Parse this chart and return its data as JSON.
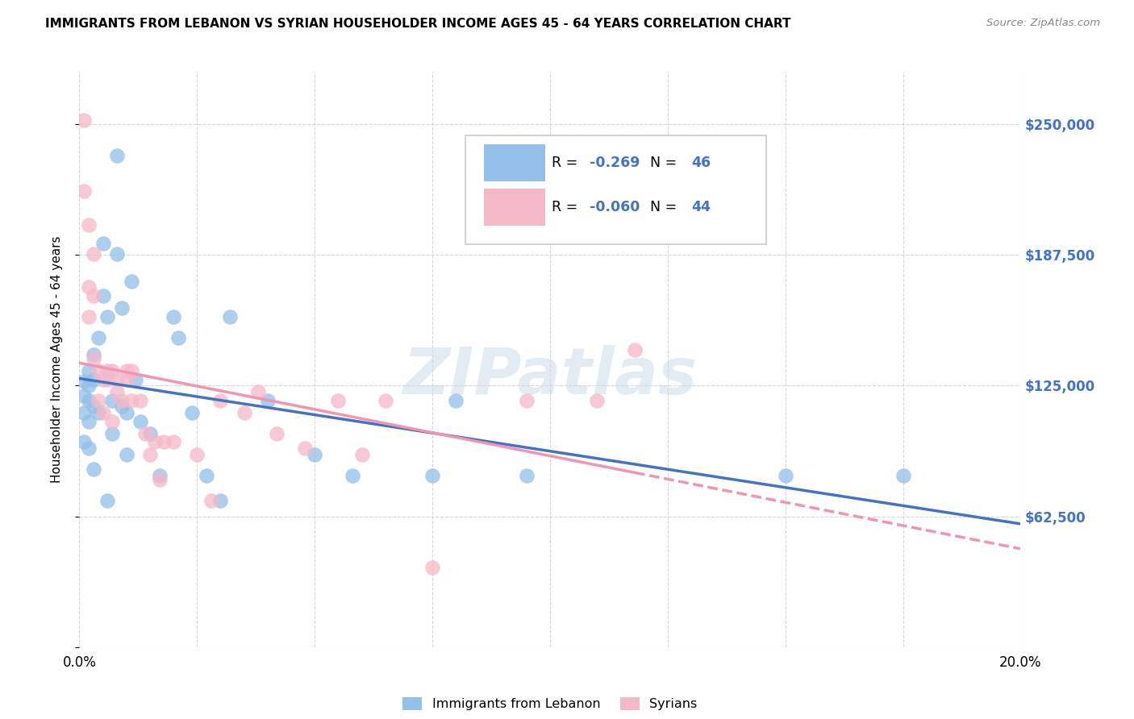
{
  "title": "IMMIGRANTS FROM LEBANON VS SYRIAN HOUSEHOLDER INCOME AGES 45 - 64 YEARS CORRELATION CHART",
  "source": "Source: ZipAtlas.com",
  "ylabel": "Householder Income Ages 45 - 64 years",
  "xlim": [
    0.0,
    0.2
  ],
  "ylim": [
    0,
    275000
  ],
  "yticks": [
    0,
    62500,
    125000,
    187500,
    250000
  ],
  "ytick_labels": [
    "",
    "$62,500",
    "$125,000",
    "$187,500",
    "$250,000"
  ],
  "xticks": [
    0.0,
    0.025,
    0.05,
    0.075,
    0.1,
    0.125,
    0.15,
    0.175,
    0.2
  ],
  "lebanon_color": "#92c0e8",
  "syria_color": "#f5b8c8",
  "lebanon_line_color": "#4472c4",
  "syria_line_color": "#f096b0",
  "legend_R_lebanon": "-0.269",
  "legend_N_lebanon": "46",
  "legend_R_syria": "-0.060",
  "legend_N_syria": "44",
  "watermark": "ZIPatlas",
  "lebanon_x": [
    0.001,
    0.001,
    0.001,
    0.001,
    0.002,
    0.002,
    0.002,
    0.002,
    0.002,
    0.003,
    0.003,
    0.003,
    0.003,
    0.004,
    0.004,
    0.005,
    0.005,
    0.006,
    0.006,
    0.007,
    0.007,
    0.008,
    0.008,
    0.009,
    0.009,
    0.01,
    0.01,
    0.011,
    0.012,
    0.013,
    0.015,
    0.017,
    0.02,
    0.021,
    0.024,
    0.027,
    0.03,
    0.032,
    0.04,
    0.05,
    0.058,
    0.075,
    0.08,
    0.095,
    0.15,
    0.175
  ],
  "lebanon_y": [
    127000,
    120000,
    112000,
    98000,
    132000,
    125000,
    118000,
    108000,
    95000,
    140000,
    128000,
    115000,
    85000,
    148000,
    112000,
    193000,
    168000,
    158000,
    70000,
    118000,
    102000,
    235000,
    188000,
    162000,
    115000,
    112000,
    92000,
    175000,
    128000,
    108000,
    102000,
    82000,
    158000,
    148000,
    112000,
    82000,
    70000,
    158000,
    118000,
    92000,
    82000,
    82000,
    118000,
    82000,
    82000,
    82000
  ],
  "syria_x": [
    0.001,
    0.001,
    0.002,
    0.002,
    0.002,
    0.003,
    0.003,
    0.003,
    0.004,
    0.004,
    0.005,
    0.005,
    0.006,
    0.006,
    0.007,
    0.007,
    0.008,
    0.008,
    0.009,
    0.01,
    0.01,
    0.011,
    0.011,
    0.013,
    0.014,
    0.015,
    0.016,
    0.017,
    0.018,
    0.02,
    0.025,
    0.028,
    0.03,
    0.035,
    0.038,
    0.042,
    0.048,
    0.055,
    0.06,
    0.065,
    0.075,
    0.095,
    0.11,
    0.118
  ],
  "syria_y": [
    252000,
    218000,
    202000,
    172000,
    158000,
    188000,
    168000,
    138000,
    132000,
    118000,
    128000,
    112000,
    132000,
    128000,
    132000,
    108000,
    128000,
    122000,
    118000,
    132000,
    128000,
    132000,
    118000,
    118000,
    102000,
    92000,
    98000,
    80000,
    98000,
    98000,
    92000,
    70000,
    118000,
    112000,
    122000,
    102000,
    95000,
    118000,
    92000,
    118000,
    38000,
    118000,
    118000,
    142000
  ]
}
